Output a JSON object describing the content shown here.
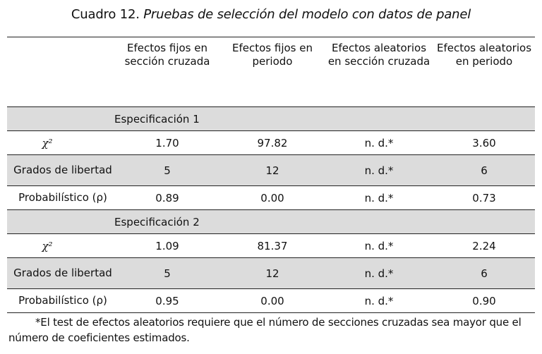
{
  "caption": {
    "prefix": "Cuadro 12. ",
    "title": "Pruebas de selección del modelo con datos de panel"
  },
  "table": {
    "headers": [
      "",
      "Efectos fijos en sección cruzada",
      "Efectos fijos en periodo",
      "Efectos aleatorios en sección cruzada",
      "Efectos aleatorios en periodo"
    ],
    "spec1": {
      "label": "Especificación 1",
      "chi": {
        "label": "χ²",
        "values": [
          "1.70",
          "97.82",
          "n. d.*",
          "3.60"
        ]
      },
      "grados": {
        "label": "Grados de libertad",
        "values": [
          "5",
          "12",
          "n. d.*",
          "6"
        ]
      },
      "prob": {
        "label": "Probabilístico (ρ)",
        "values": [
          "0.89",
          "0.00",
          "n. d.*",
          "0.73"
        ]
      }
    },
    "spec2": {
      "label": "Especificación 2",
      "chi": {
        "label": "χ²",
        "values": [
          "1.09",
          "81.37",
          "n. d.*",
          "2.24"
        ]
      },
      "grados": {
        "label": "Grados de libertad",
        "values": [
          "5",
          "12",
          "n. d.*",
          "6"
        ]
      },
      "prob": {
        "label": "Probabilístico (ρ)",
        "values": [
          "0.95",
          "0.00",
          "n. d.*",
          "0.90"
        ]
      }
    }
  },
  "footnote": "*El test de efectos aleatorios requiere que el número de secciones cruzadas sea mayor que el número de coeficientes estimados."
}
